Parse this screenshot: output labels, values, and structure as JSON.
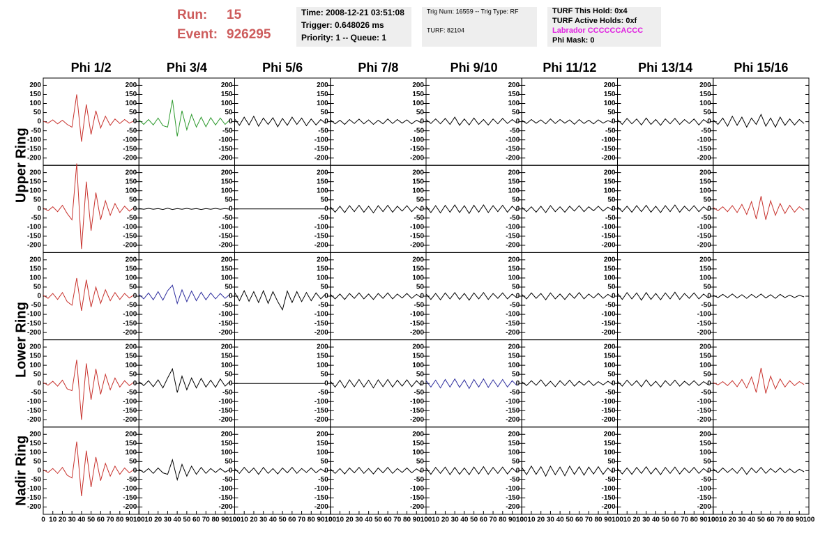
{
  "header": {
    "run_label": "Run:",
    "run": "15",
    "event_label": "Event:",
    "event": "926295",
    "box1": [
      "Time: 2008-12-21 03:51:08",
      "Trigger: 0.648026 ms",
      "Priority: 1 -- Queue: 1"
    ],
    "box2": [
      "Trig Num: 16559 -- Trig Type: RF",
      "TURF: 82104"
    ],
    "box3": [
      "TURF This Hold: 0x4",
      "TURF Active Holds: 0xf",
      "Labrador CCCCCCACCC",
      "Phi Mask: 0"
    ],
    "box3_colors": [
      "#000000",
      "#000000",
      "#e020e0",
      "#000000"
    ]
  },
  "chart_data": {
    "type": "line",
    "columns": [
      "Phi 1/2",
      "Phi 3/4",
      "Phi 5/6",
      "Phi 7/8",
      "Phi 9/10",
      "Phi 11/12",
      "Phi 13/14",
      "Phi 15/16"
    ],
    "rows": [
      "Upper Ring",
      "Lower Ring",
      "Nadir Ring"
    ],
    "xlim": [
      0,
      100
    ],
    "xticks": [
      0,
      10,
      20,
      30,
      40,
      50,
      60,
      70,
      80,
      90,
      100
    ],
    "ylim": [
      -240,
      240
    ],
    "yticks": [
      200,
      150,
      100,
      50,
      0,
      -50,
      -100,
      -150,
      -200
    ],
    "x": [
      0,
      5,
      10,
      15,
      20,
      25,
      30,
      35,
      40,
      45,
      50,
      55,
      60,
      65,
      70,
      75,
      80,
      85,
      90,
      95
    ],
    "series": [
      {
        "color": "#c8322d",
        "values": [
          3,
          -8,
          10,
          -12,
          8,
          -15,
          -30,
          150,
          -110,
          95,
          -70,
          60,
          -35,
          30,
          -20,
          15,
          -10,
          12,
          -8,
          5
        ]
      },
      {
        "color": "#2e9a2e",
        "values": [
          10,
          -15,
          12,
          -18,
          20,
          -22,
          -30,
          120,
          -80,
          60,
          -45,
          40,
          -30,
          25,
          -28,
          22,
          -18,
          20,
          -15,
          10
        ]
      },
      {
        "color": "#000000",
        "values": [
          15,
          -20,
          25,
          -18,
          30,
          -25,
          20,
          -15,
          22,
          -28,
          18,
          -20,
          25,
          -15,
          20,
          -22,
          15,
          -18,
          12,
          -10
        ]
      },
      {
        "color": "#000000",
        "values": [
          10,
          -12,
          8,
          -15,
          12,
          -10,
          14,
          -12,
          10,
          -15,
          8,
          -12,
          15,
          -10,
          12,
          -8,
          10,
          -12,
          8,
          -6
        ]
      },
      {
        "color": "#000000",
        "values": [
          12,
          -10,
          15,
          -12,
          18,
          -15,
          25,
          -20,
          15,
          -18,
          20,
          -15,
          12,
          -18,
          15,
          -12,
          18,
          -10,
          12,
          -8
        ]
      },
      {
        "color": "#000000",
        "values": [
          8,
          -10,
          12,
          -8,
          10,
          -12,
          15,
          -10,
          12,
          -8,
          10,
          -14,
          12,
          -10,
          8,
          -12,
          10,
          -8,
          6,
          -5
        ]
      },
      {
        "color": "#000000",
        "values": [
          12,
          -15,
          18,
          -12,
          15,
          -18,
          20,
          -15,
          12,
          -20,
          15,
          -12,
          18,
          -15,
          12,
          -10,
          15,
          -18,
          12,
          -8
        ]
      },
      {
        "color": "#000000",
        "values": [
          10,
          -15,
          20,
          -25,
          30,
          -20,
          25,
          -30,
          20,
          -15,
          40,
          -25,
          20,
          -30,
          25,
          -20,
          15,
          -18,
          12,
          -10
        ]
      },
      {
        "color": "#c8322d",
        "values": [
          5,
          -10,
          12,
          -15,
          20,
          -25,
          -60,
          250,
          -220,
          150,
          -120,
          90,
          -60,
          45,
          -35,
          30,
          -20,
          15,
          -12,
          8
        ]
      },
      {
        "color": "#000000",
        "values": [
          2,
          -2,
          3,
          -2,
          2,
          -3,
          4,
          -3,
          2,
          -2,
          3,
          -2,
          2,
          -3,
          2,
          -2,
          3,
          -2,
          2,
          -1
        ]
      },
      {
        "color": "#000000",
        "values": [
          0,
          0,
          0,
          0,
          0,
          0,
          0,
          0,
          0,
          0,
          0,
          0,
          0,
          0,
          0,
          0,
          0,
          0,
          0,
          0
        ]
      },
      {
        "color": "#000000",
        "values": [
          12,
          -18,
          15,
          -20,
          18,
          -15,
          20,
          -18,
          15,
          -22,
          18,
          -15,
          20,
          -18,
          15,
          -12,
          18,
          -15,
          12,
          -10
        ]
      },
      {
        "color": "#000000",
        "values": [
          15,
          -20,
          18,
          -22,
          20,
          -18,
          22,
          -20,
          18,
          -25,
          20,
          -18,
          22,
          -20,
          18,
          -15,
          20,
          -18,
          15,
          -12
        ]
      },
      {
        "color": "#000000",
        "values": [
          10,
          -15,
          12,
          -18,
          15,
          -20,
          18,
          -15,
          12,
          -18,
          15,
          -12,
          18,
          -15,
          12,
          -10,
          15,
          -12,
          10,
          -8
        ]
      },
      {
        "color": "#000000",
        "values": [
          12,
          -15,
          15,
          -18,
          18,
          -15,
          20,
          -18,
          15,
          -20,
          18,
          -15,
          22,
          -18,
          15,
          -12,
          18,
          -15,
          12,
          -10
        ]
      },
      {
        "color": "#c8322d",
        "values": [
          8,
          -10,
          12,
          -15,
          18,
          -20,
          25,
          -30,
          40,
          -55,
          70,
          -60,
          45,
          -35,
          30,
          -25,
          20,
          -18,
          12,
          -8
        ]
      },
      {
        "color": "#c8322d",
        "values": [
          5,
          -12,
          15,
          -18,
          20,
          -30,
          -50,
          100,
          -80,
          90,
          -60,
          50,
          -40,
          35,
          -25,
          20,
          -18,
          15,
          -10,
          8
        ]
      },
      {
        "color": "#2d2d9e",
        "values": [
          10,
          -15,
          18,
          -20,
          25,
          -22,
          30,
          60,
          -40,
          35,
          -30,
          28,
          -25,
          22,
          -20,
          18,
          -15,
          15,
          -12,
          10
        ]
      },
      {
        "color": "#000000",
        "values": [
          20,
          -25,
          30,
          -28,
          25,
          -35,
          30,
          -40,
          25,
          -30,
          -75,
          28,
          -35,
          25,
          -30,
          20,
          -25,
          18,
          -15,
          12
        ]
      },
      {
        "color": "#000000",
        "values": [
          10,
          -15,
          12,
          -18,
          15,
          -12,
          18,
          -15,
          12,
          -18,
          15,
          -12,
          18,
          -15,
          12,
          -10,
          15,
          -12,
          10,
          -8
        ]
      },
      {
        "color": "#000000",
        "values": [
          12,
          -18,
          15,
          -20,
          18,
          -15,
          20,
          -18,
          15,
          -22,
          18,
          -15,
          20,
          -18,
          15,
          -12,
          18,
          -15,
          12,
          -10
        ]
      },
      {
        "color": "#000000",
        "values": [
          10,
          -15,
          18,
          -12,
          15,
          -20,
          18,
          -15,
          12,
          -18,
          15,
          -12,
          20,
          -15,
          12,
          -10,
          15,
          -12,
          10,
          -8
        ]
      },
      {
        "color": "#000000",
        "values": [
          15,
          -18,
          20,
          -15,
          18,
          -22,
          20,
          -18,
          15,
          -20,
          18,
          -15,
          22,
          -18,
          15,
          -12,
          18,
          -15,
          12,
          -10
        ]
      },
      {
        "color": "#000000",
        "values": [
          5,
          -8,
          10,
          -8,
          12,
          -10,
          8,
          -12,
          10,
          -8,
          12,
          -10,
          8,
          -12,
          10,
          -8,
          6,
          -8,
          5,
          -4
        ]
      },
      {
        "color": "#c8322d",
        "values": [
          5,
          -10,
          12,
          -15,
          18,
          -30,
          -40,
          130,
          -200,
          110,
          -90,
          80,
          -60,
          50,
          -35,
          30,
          -20,
          15,
          -12,
          8
        ]
      },
      {
        "color": "#000000",
        "values": [
          10,
          -12,
          15,
          -18,
          20,
          -25,
          30,
          80,
          -50,
          40,
          -35,
          30,
          -25,
          28,
          -20,
          18,
          -22,
          25,
          -15,
          10
        ]
      },
      {
        "color": "#000000",
        "values": [
          0,
          0,
          0,
          0,
          0,
          0,
          0,
          0,
          0,
          0,
          0,
          0,
          0,
          0,
          0,
          0,
          0,
          0,
          0,
          0
        ]
      },
      {
        "color": "#000000",
        "values": [
          12,
          -20,
          18,
          -25,
          20,
          -18,
          22,
          -20,
          18,
          -25,
          20,
          -18,
          22,
          -20,
          18,
          -15,
          20,
          -18,
          15,
          -12
        ]
      },
      {
        "color": "#2d2d9e",
        "values": [
          15,
          -20,
          18,
          -25,
          22,
          -20,
          25,
          -22,
          20,
          -28,
          22,
          -20,
          25,
          -22,
          20,
          -18,
          22,
          -20,
          15,
          -12
        ]
      },
      {
        "color": "#000000",
        "values": [
          10,
          -12,
          15,
          -10,
          20,
          -15,
          12,
          -18,
          15,
          -12,
          18,
          -15,
          12,
          -10,
          15,
          -12,
          10,
          -8,
          12,
          -6
        ]
      },
      {
        "color": "#000000",
        "values": [
          12,
          -15,
          18,
          -12,
          15,
          -18,
          20,
          -15,
          12,
          -20,
          15,
          -12,
          18,
          -15,
          12,
          -10,
          15,
          -12,
          10,
          -8
        ]
      },
      {
        "color": "#c8322d",
        "values": [
          5,
          -8,
          10,
          -12,
          15,
          -18,
          22,
          -25,
          35,
          -50,
          85,
          -55,
          40,
          -30,
          25,
          -20,
          15,
          -12,
          10,
          -6
        ]
      },
      {
        "color": "#c8322d",
        "values": [
          5,
          -10,
          12,
          -15,
          18,
          -25,
          -40,
          160,
          -140,
          110,
          -90,
          75,
          -55,
          40,
          -30,
          25,
          -20,
          15,
          -12,
          8
        ]
      },
      {
        "color": "#000000",
        "values": [
          8,
          -10,
          12,
          -15,
          15,
          -12,
          -20,
          60,
          -50,
          35,
          -30,
          25,
          -20,
          18,
          -15,
          12,
          -10,
          12,
          -8,
          6
        ]
      },
      {
        "color": "#000000",
        "values": [
          12,
          -15,
          18,
          -12,
          15,
          -20,
          18,
          -15,
          12,
          -18,
          15,
          -12,
          18,
          -15,
          12,
          -10,
          15,
          -12,
          10,
          -8
        ]
      },
      {
        "color": "#000000",
        "values": [
          10,
          -15,
          12,
          -18,
          15,
          -12,
          18,
          -15,
          12,
          -18,
          15,
          -12,
          18,
          -15,
          12,
          -10,
          15,
          -12,
          10,
          -8
        ]
      },
      {
        "color": "#000000",
        "values": [
          15,
          -20,
          18,
          -15,
          20,
          -22,
          18,
          -20,
          15,
          -22,
          20,
          -18,
          22,
          -20,
          18,
          -15,
          20,
          -18,
          15,
          -10
        ]
      },
      {
        "color": "#000000",
        "values": [
          18,
          -22,
          25,
          -20,
          22,
          -30,
          25,
          -22,
          20,
          -28,
          25,
          -20,
          22,
          -25,
          20,
          -18,
          22,
          -20,
          15,
          -12
        ]
      },
      {
        "color": "#000000",
        "values": [
          12,
          -18,
          15,
          -20,
          18,
          -15,
          22,
          -18,
          15,
          -22,
          18,
          -15,
          20,
          -18,
          15,
          -12,
          18,
          -15,
          12,
          -10
        ]
      },
      {
        "color": "#000000",
        "values": [
          10,
          -12,
          15,
          -10,
          12,
          -15,
          18,
          -20,
          15,
          -12,
          18,
          -15,
          12,
          -10,
          15,
          -12,
          10,
          -12,
          8,
          -6
        ]
      }
    ]
  }
}
